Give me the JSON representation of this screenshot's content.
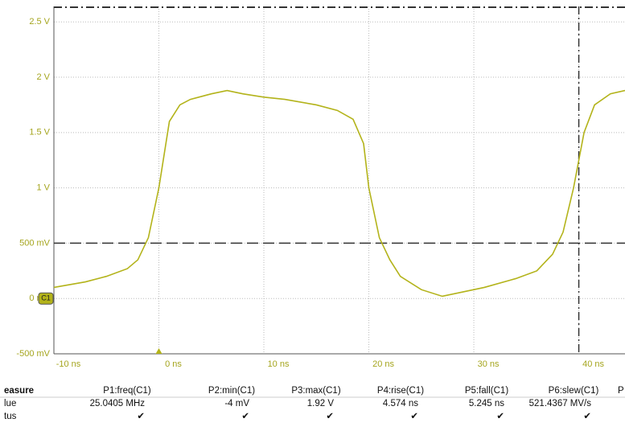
{
  "chart_data": {
    "type": "line",
    "x": [
      -10,
      -7,
      -5,
      -3,
      -2,
      -1,
      0,
      0.5,
      1,
      2,
      3,
      5,
      6.5,
      8,
      10,
      12,
      15,
      17,
      18.5,
      19.5,
      20,
      21,
      22,
      23,
      25,
      27,
      29,
      31,
      34,
      36,
      37.5,
      38.5,
      39.5,
      40.5,
      41.5,
      43,
      44.4
    ],
    "series": [
      {
        "name": "C1",
        "color": "#b3b31a",
        "values": [
          0.1,
          0.15,
          0.2,
          0.27,
          0.35,
          0.55,
          1.0,
          1.3,
          1.6,
          1.75,
          1.8,
          1.85,
          1.88,
          1.85,
          1.82,
          1.8,
          1.75,
          1.7,
          1.62,
          1.4,
          1.0,
          0.55,
          0.35,
          0.2,
          0.08,
          0.02,
          0.06,
          0.1,
          0.18,
          0.25,
          0.4,
          0.6,
          1.0,
          1.5,
          1.75,
          1.85,
          1.88
        ]
      }
    ],
    "xlim": [
      -10,
      44.4
    ],
    "ylim": [
      -0.5,
      2.64
    ],
    "xticks": [
      {
        "value": -10,
        "label": "-10 ns"
      },
      {
        "value": 0,
        "label": "0 ns"
      },
      {
        "value": 10,
        "label": "10 ns"
      },
      {
        "value": 20,
        "label": "20 ns"
      },
      {
        "value": 30,
        "label": "30 ns"
      },
      {
        "value": 40,
        "label": "40 ns"
      }
    ],
    "yticks": [
      {
        "value": -0.5,
        "label": "-500 mV"
      },
      {
        "value": 0,
        "label": "0 mV"
      },
      {
        "value": 0.5,
        "label": "500 mV"
      },
      {
        "value": 1,
        "label": "1 V"
      },
      {
        "value": 1.5,
        "label": "1.5 V"
      },
      {
        "value": 2,
        "label": "2 V"
      },
      {
        "value": 2.5,
        "label": "2.5 V"
      }
    ],
    "grid": true,
    "level_cursor": 0.5,
    "time_cursor": 40,
    "top_cursor": 2.64
  },
  "table": {
    "header": [
      "easure",
      "P1:freq(C1)",
      "P2:min(C1)",
      "P3:max(C1)",
      "P4:rise(C1)",
      "P5:fall(C1)",
      "P6:slew(C1)",
      "P"
    ],
    "rows": [
      [
        "lue",
        "25.0405 MHz",
        "-4 mV",
        "1.92 V",
        "4.574 ns",
        "5.245 ns",
        "521.4367 MV/s"
      ],
      [
        "tus",
        "✔",
        "✔",
        "✔",
        "✔",
        "✔",
        "✔"
      ]
    ]
  }
}
